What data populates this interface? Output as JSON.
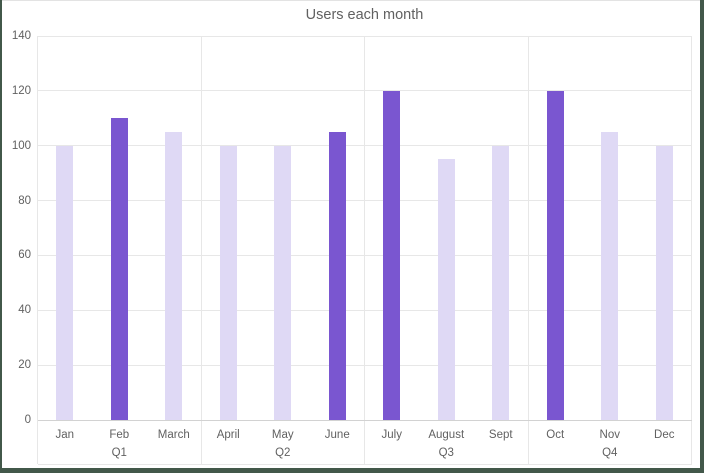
{
  "chart_data": {
    "type": "bar",
    "title": "Users each month",
    "categories": [
      "Jan",
      "Feb",
      "March",
      "April",
      "May",
      "June",
      "July",
      "August",
      "Sept",
      "Oct",
      "Nov",
      "Dec"
    ],
    "values": [
      100,
      110,
      105,
      100,
      100,
      105,
      120,
      95,
      100,
      120,
      105,
      100
    ],
    "highlighted": [
      false,
      true,
      false,
      false,
      false,
      true,
      true,
      false,
      false,
      true,
      false,
      false
    ],
    "highlighted_categories": [
      "Feb",
      "June",
      "July",
      "Oct"
    ],
    "group_labels": [
      "Q1",
      "Q2",
      "Q3",
      "Q4"
    ],
    "categories_per_group": 3,
    "yticks": [
      0,
      20,
      40,
      60,
      80,
      100,
      120,
      140
    ],
    "ylim": [
      0,
      140
    ],
    "xlabel": "",
    "ylabel": "",
    "grid": true,
    "legend": "none",
    "colors": {
      "bar_default": "#dfd9f5",
      "bar_highlight": "#7a56d0",
      "grid": "#e7e7e7",
      "axis": "#d2d2d2",
      "text": "#616161",
      "window_border": "#42584a",
      "top_edge": "#e3e3e3",
      "background": "#ffffff"
    }
  }
}
